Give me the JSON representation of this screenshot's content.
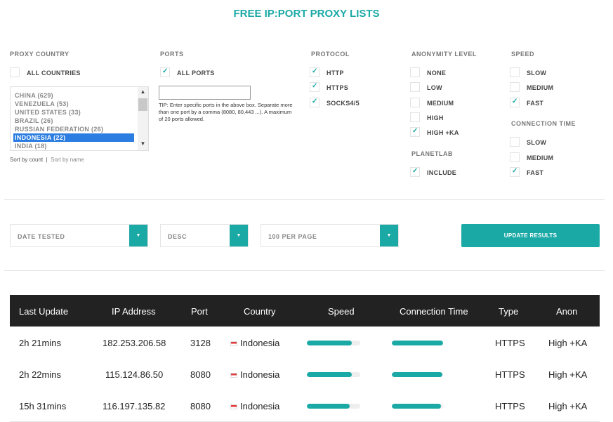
{
  "title": "FREE IP:PORT PROXY LISTS",
  "proxy_country": {
    "label": "PROXY COUNTRY",
    "all_label": "ALL COUNTRIES",
    "all_checked": false,
    "list": [
      "CHINA (629)",
      "VENEZUELA (53)",
      "UNITED STATES (33)",
      "BRAZIL (26)",
      "RUSSIAN FEDERATION (26)",
      "INDONESIA (22)",
      "INDIA (18)"
    ],
    "selected": "INDONESIA (22)",
    "sort_by_count": "Sort by count",
    "sort_separator": "|",
    "sort_by_name": "Sort by name"
  },
  "ports": {
    "label": "PORTS",
    "all_label": "ALL PORTS",
    "all_checked": true,
    "input_value": "",
    "tip": "TIP: Enter specific ports in the above box. Separate more than one port by a comma (8080, 80,443 ...). A maximum of 20 ports allowed."
  },
  "protocol": {
    "label": "PROTOCOL",
    "options": [
      {
        "label": "HTTP",
        "checked": true
      },
      {
        "label": "HTTPS",
        "checked": true
      },
      {
        "label": "SOCKS4/5",
        "checked": true
      }
    ]
  },
  "anonymity": {
    "label": "ANONYMITY LEVEL",
    "options": [
      {
        "label": "NONE",
        "checked": false
      },
      {
        "label": "LOW",
        "checked": false
      },
      {
        "label": "MEDIUM",
        "checked": false
      },
      {
        "label": "HIGH",
        "checked": false
      },
      {
        "label": "HIGH +KA",
        "checked": true
      }
    ]
  },
  "planetlab": {
    "label": "PLANETLAB",
    "include_label": "INCLUDE",
    "include_checked": true
  },
  "speed": {
    "label": "SPEED",
    "options": [
      {
        "label": "SLOW",
        "checked": false
      },
      {
        "label": "MEDIUM",
        "checked": false
      },
      {
        "label": "FAST",
        "checked": true
      }
    ]
  },
  "connection_time": {
    "label": "CONNECTION TIME",
    "options": [
      {
        "label": "SLOW",
        "checked": false
      },
      {
        "label": "MEDIUM",
        "checked": false
      },
      {
        "label": "FAST",
        "checked": true
      }
    ]
  },
  "controls": {
    "sort_field": "DATE TESTED",
    "sort_order": "DESC",
    "per_page": "100 PER PAGE",
    "update_label": "UPDATE RESULTS",
    "arrow_icon": "triangle-down-icon"
  },
  "table": {
    "headers": [
      "Last Update",
      "IP Address",
      "Port",
      "Country",
      "Speed",
      "Connection Time",
      "Type",
      "Anon"
    ],
    "rows": [
      {
        "last_update": "2h 21mins",
        "ip": "182.253.206.58",
        "port": "3128",
        "country": "Indonesia",
        "speed": 0.84,
        "connection_time": 1.0,
        "type": "HTTPS",
        "anon": "High +KA"
      },
      {
        "last_update": "2h 22mins",
        "ip": "115.124.86.50",
        "port": "8080",
        "country": "Indonesia",
        "speed": 0.84,
        "connection_time": 0.99,
        "type": "HTTPS",
        "anon": "High +KA"
      },
      {
        "last_update": "15h 31mins",
        "ip": "116.197.135.82",
        "port": "8080",
        "country": "Indonesia",
        "speed": 0.8,
        "connection_time": 0.96,
        "type": "HTTPS",
        "anon": "High +KA"
      }
    ]
  },
  "colors": {
    "accent": "#1ba9a6",
    "header_bg": "#222222",
    "selected": "#2b7de1"
  }
}
